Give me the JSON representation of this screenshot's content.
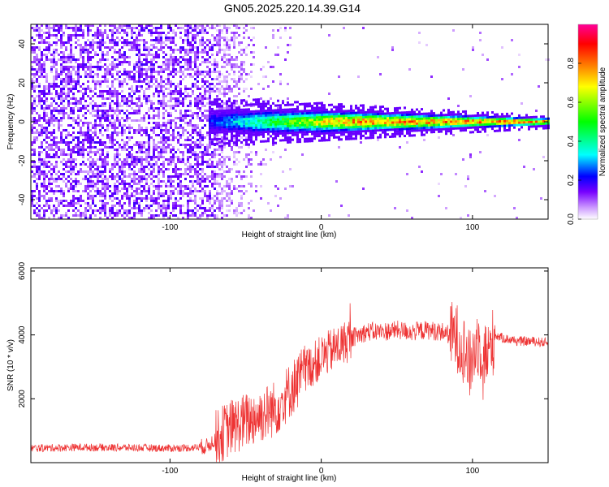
{
  "figure": {
    "title": "GN05.2025.220.14.39.G14"
  },
  "chart_data": [
    {
      "type": "heatmap",
      "xlabel": "Height of straight line (km)",
      "ylabel": "Frequency (Hz)",
      "xlim": [
        -192,
        150
      ],
      "ylim": [
        -50,
        50
      ],
      "xticks": [
        -100,
        0,
        100
      ],
      "yticks": [
        -40,
        -20,
        0,
        20,
        40
      ],
      "colorbar": {
        "label": "Normalized spectral amplitude",
        "range": [
          0.0,
          1.0
        ],
        "ticks": [
          0.0,
          0.2,
          0.4,
          0.6,
          0.8
        ],
        "colormap": [
          "#ffffff",
          "#cc99ff",
          "#7700ff",
          "#0000ff",
          "#00ffff",
          "#00ff00",
          "#ffff00",
          "#ff8800",
          "#ff0000",
          "#ff0099"
        ]
      },
      "description_of_values": {
        "noise_region_x": [
          -192,
          -40
        ],
        "noise_amplitude": 0.15,
        "signal_line_frequency_hz": 0,
        "signal_start_x": -75,
        "signal_peak_amplitude": 0.9,
        "signal_halfwidth_hz_at_start": 8,
        "signal_halfwidth_hz_at_end": 2
      }
    },
    {
      "type": "line",
      "xlabel": "Height of straight line (km)",
      "ylabel": "SNR (10 * v/v)",
      "xlim": [
        -192,
        150
      ],
      "ylim": [
        0,
        6100
      ],
      "xticks": [
        -100,
        0,
        100
      ],
      "yticks": [
        2000,
        4000,
        6000
      ],
      "series": [
        {
          "color": "#ee3333",
          "x": [
            -192,
            -160,
            -130,
            -100,
            -85,
            -75,
            -70,
            -60,
            -50,
            -40,
            -30,
            -20,
            -10,
            0,
            10,
            20,
            30,
            40,
            50,
            60,
            70,
            80,
            90,
            95,
            98,
            100,
            103,
            110,
            115,
            120,
            130,
            140,
            150
          ],
          "y": [
            450,
            480,
            470,
            450,
            470,
            520,
            750,
            1100,
            1300,
            1500,
            1700,
            2300,
            2900,
            3300,
            3600,
            3900,
            4100,
            4100,
            4150,
            4100,
            4150,
            4100,
            3900,
            3500,
            3000,
            3300,
            3800,
            3300,
            4000,
            3900,
            3800,
            3800,
            3750
          ]
        }
      ]
    }
  ]
}
